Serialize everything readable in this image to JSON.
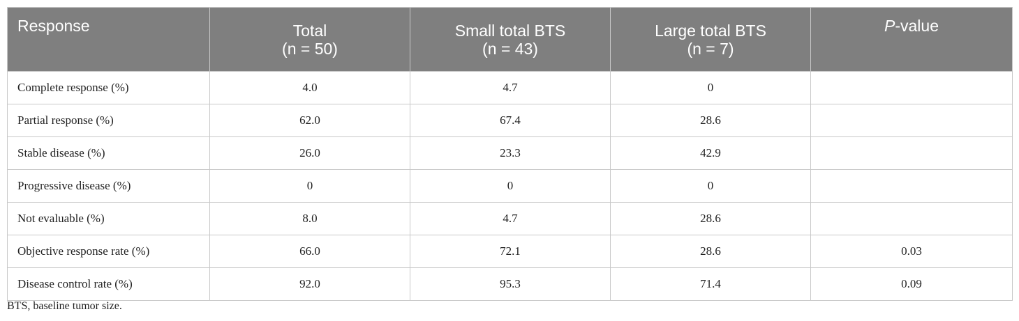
{
  "table": {
    "headers": [
      {
        "line1": "Response",
        "line2": ""
      },
      {
        "line1": "Total",
        "line2": "(n = 50)"
      },
      {
        "line1": "Small total BTS",
        "line2": "(n = 43)"
      },
      {
        "line1": "Large total BTS",
        "line2": "(n = 7)"
      },
      {
        "line1_italic": "P",
        "line1_rest": "-value"
      }
    ],
    "rows": [
      {
        "label": "Complete response (%)",
        "total": "4.0",
        "small": "4.7",
        "large": "0",
        "p": ""
      },
      {
        "label": "Partial response (%)",
        "total": "62.0",
        "small": "67.4",
        "large": "28.6",
        "p": ""
      },
      {
        "label": "Stable disease (%)",
        "total": "26.0",
        "small": "23.3",
        "large": "42.9",
        "p": ""
      },
      {
        "label": "Progressive disease (%)",
        "total": "0",
        "small": "0",
        "large": "0",
        "p": ""
      },
      {
        "label": "Not evaluable (%)",
        "total": "8.0",
        "small": "4.7",
        "large": "28.6",
        "p": ""
      },
      {
        "label": "Objective response rate (%)",
        "total": "66.0",
        "small": "72.1",
        "large": "28.6",
        "p": "0.03"
      },
      {
        "label": "Disease control rate (%)",
        "total": "92.0",
        "small": "95.3",
        "large": "71.4",
        "p": "0.09"
      }
    ]
  },
  "footnote": "BTS, baseline tumor size."
}
